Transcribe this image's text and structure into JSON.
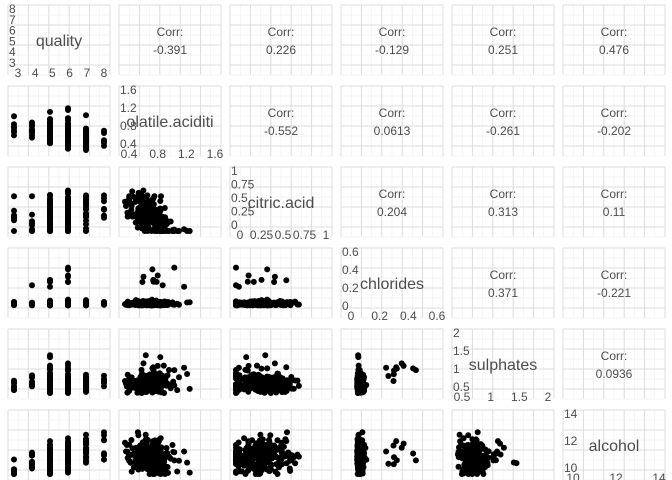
{
  "chart_data": {
    "type": "scatter-matrix",
    "variables": [
      "quality",
      "volatile.acidity",
      "citric.acid",
      "chlorides",
      "sulphates",
      "alcohol"
    ],
    "diagonal_labels": [
      "quality",
      "olatile.aciditi",
      "citric.acid",
      "chlorides",
      "sulphates",
      "alcohol"
    ],
    "corr_label": "Corr:",
    "correlations": [
      {
        "row": 0,
        "col": 1,
        "value": "-0.391"
      },
      {
        "row": 0,
        "col": 2,
        "value": "0.226"
      },
      {
        "row": 0,
        "col": 3,
        "value": "-0.129"
      },
      {
        "row": 0,
        "col": 4,
        "value": "0.251"
      },
      {
        "row": 0,
        "col": 5,
        "value": "0.476"
      },
      {
        "row": 1,
        "col": 2,
        "value": "-0.552"
      },
      {
        "row": 1,
        "col": 3,
        "value": "0.0613"
      },
      {
        "row": 1,
        "col": 4,
        "value": "-0.261"
      },
      {
        "row": 1,
        "col": 5,
        "value": "-0.202"
      },
      {
        "row": 2,
        "col": 3,
        "value": "0.204"
      },
      {
        "row": 2,
        "col": 4,
        "value": "0.313"
      },
      {
        "row": 2,
        "col": 5,
        "value": "0.11"
      },
      {
        "row": 3,
        "col": 4,
        "value": "0.371"
      },
      {
        "row": 3,
        "col": 5,
        "value": "-0.221"
      },
      {
        "row": 4,
        "col": 5,
        "value": "0.0936"
      }
    ],
    "ranges": {
      "quality": [
        3,
        8
      ],
      "volatile.acidity": [
        0.12,
        1.58
      ],
      "citric.acid": [
        0,
        1
      ],
      "chlorides": [
        0.012,
        0.611
      ],
      "sulphates": [
        0.33,
        2.0
      ],
      "alcohol": [
        8.4,
        14.9
      ]
    },
    "diagonal_x_ticks": [
      [
        "3",
        "4",
        "5",
        "6",
        "7",
        "8"
      ],
      [
        "0.4",
        "0.8",
        "1.2",
        "1.6"
      ],
      [
        "0",
        "0.25",
        "0.5",
        "0.75",
        "1"
      ],
      [
        "0",
        "0.2",
        "0.4",
        "0.6"
      ],
      [
        "0.5",
        "1",
        "1.5",
        "2"
      ],
      [
        "10",
        "12",
        "14"
      ]
    ],
    "diagonal_y_ticks": [
      [
        "3",
        "4",
        "5",
        "6",
        "7",
        "8"
      ],
      [
        "0.4",
        "0.8",
        "1.2",
        "1.6"
      ],
      [
        "0",
        "0.25",
        "0.5",
        "0.75",
        "1"
      ],
      [
        "0",
        "0.2",
        "0.4",
        "0.6"
      ],
      [
        "0.5",
        "1",
        "1.5",
        "2"
      ],
      [
        "10",
        "12",
        "14"
      ]
    ],
    "grid": true,
    "point_color": "#000000",
    "grid_color": "#dcdcdc"
  }
}
